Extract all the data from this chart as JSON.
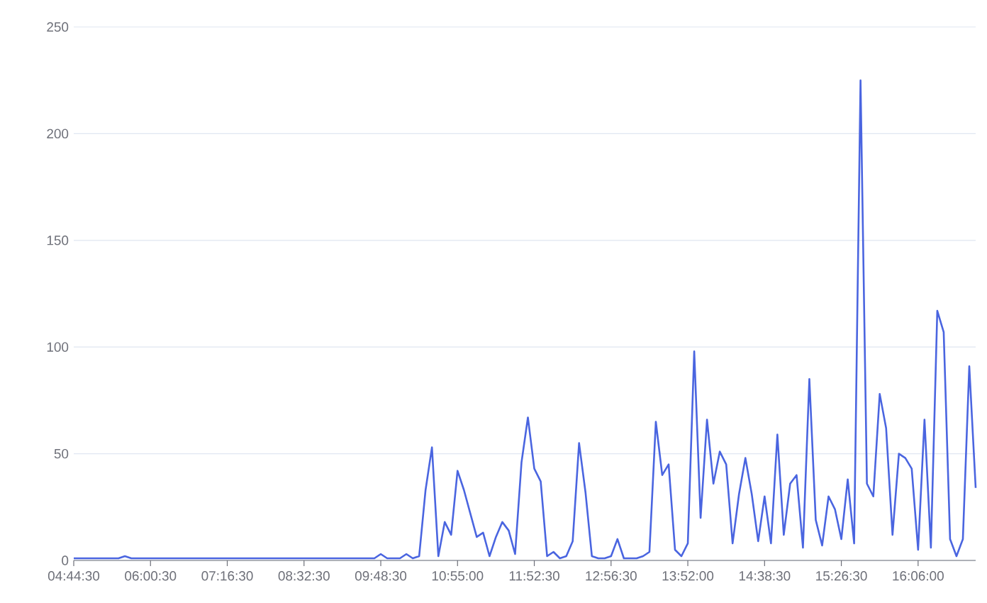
{
  "chart_data": {
    "type": "line",
    "categories": [
      "04:44:30",
      null,
      null,
      null,
      null,
      null,
      null,
      null,
      null,
      null,
      null,
      null,
      "06:00:30",
      null,
      null,
      null,
      null,
      null,
      null,
      null,
      null,
      null,
      null,
      null,
      "07:16:30",
      null,
      null,
      null,
      null,
      null,
      null,
      null,
      null,
      null,
      null,
      null,
      "08:32:30",
      null,
      null,
      null,
      null,
      null,
      null,
      null,
      null,
      null,
      null,
      null,
      "09:48:30",
      null,
      null,
      null,
      null,
      null,
      null,
      null,
      null,
      null,
      null,
      null,
      "10:55:00",
      null,
      null,
      null,
      null,
      null,
      null,
      null,
      null,
      null,
      null,
      null,
      "11:52:30",
      null,
      null,
      null,
      null,
      null,
      null,
      null,
      null,
      null,
      null,
      null,
      "12:56:30",
      null,
      null,
      null,
      null,
      null,
      null,
      null,
      null,
      null,
      null,
      null,
      "13:52:00",
      null,
      null,
      null,
      null,
      null,
      null,
      null,
      null,
      null,
      null,
      null,
      "14:38:30",
      null,
      null,
      null,
      null,
      null,
      null,
      null,
      null,
      null,
      null,
      null,
      "15:26:30",
      null,
      null,
      null,
      null,
      null,
      null,
      null,
      null,
      null,
      null,
      null,
      "16:06:00",
      null,
      null,
      null,
      null,
      null,
      null,
      null,
      null,
      null
    ],
    "series": [
      {
        "color": "#4a65e0",
        "values": [
          1,
          1,
          1,
          1,
          1,
          1,
          1,
          1,
          2,
          1,
          1,
          1,
          1,
          1,
          1,
          1,
          1,
          1,
          1,
          1,
          1,
          1,
          1,
          1,
          1,
          1,
          1,
          1,
          1,
          1,
          1,
          1,
          1,
          1,
          1,
          1,
          1,
          1,
          1,
          1,
          1,
          1,
          1,
          1,
          1,
          1,
          1,
          1,
          3,
          1,
          1,
          1,
          3,
          1,
          2,
          33,
          53,
          2,
          18,
          12,
          42,
          33,
          22,
          11,
          13,
          2,
          11,
          18,
          14,
          3,
          46,
          67,
          43,
          37,
          2,
          4,
          1,
          2,
          9,
          55,
          32,
          2,
          1,
          1,
          2,
          10,
          1,
          1,
          1,
          2,
          4,
          65,
          40,
          45,
          5,
          2,
          8,
          98,
          20,
          66,
          36,
          51,
          45,
          8,
          31,
          48,
          31,
          9,
          30,
          8,
          59,
          12,
          36,
          40,
          6,
          85,
          19,
          7,
          30,
          24,
          10,
          38,
          8,
          225,
          36,
          30,
          78,
          62,
          12,
          50,
          48,
          43,
          5,
          66,
          6,
          117,
          107,
          10,
          2,
          10,
          91,
          34
        ]
      }
    ],
    "ylim": [
      0,
      250
    ],
    "yticks": [
      0,
      50,
      100,
      150,
      200,
      250
    ],
    "grid": "y"
  }
}
